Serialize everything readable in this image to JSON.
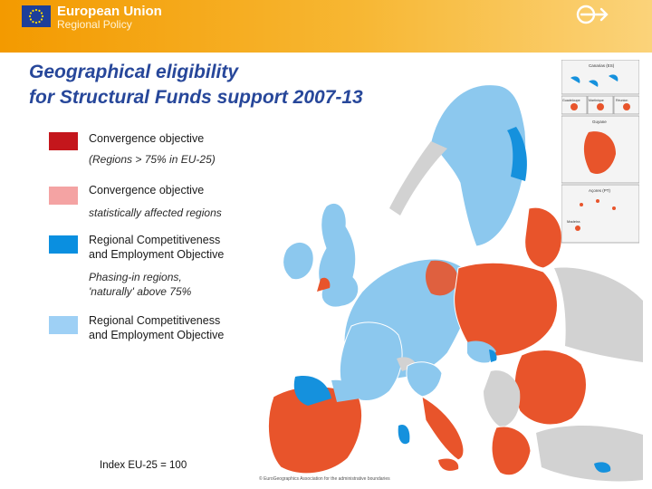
{
  "header": {
    "org_title": "European Union",
    "org_subtitle": "Regional Policy"
  },
  "title": "Geographical  eligibility\nfor Structural Funds support 2007-13",
  "legend": [
    {
      "label": "Convergence objective",
      "note": "(Regions > 75% in EU-25)",
      "color": "#c4161c"
    },
    {
      "label": "Convergence objective",
      "note": "statistically affected regions",
      "color": "#f4a3a3"
    },
    {
      "label": "Regional Competitiveness\nand Employment Objective",
      "note": "Phasing-in regions,\n'naturally' above 75%",
      "color": "#0a8fe0"
    },
    {
      "label": "Regional Competitiveness\nand Employment Objective",
      "note": "",
      "color": "#9ed0f5"
    }
  ],
  "map": {
    "convergence_color": "#e8542b",
    "competitiveness_color": "#8cc8ee",
    "phasing_in_color": "#1591dd",
    "non_eu_color": "#d2d2d2",
    "sea_color": "#ffffff",
    "insets": [
      "Canarias (ES)",
      "Guadeloupe",
      "Martinique",
      "Réunion",
      "Guyane",
      "Açores (PT)",
      "Madeira"
    ],
    "copyright": "© EuroGeographics Association for the administrative boundaries"
  },
  "footer": {
    "index_label": "Index EU-25 = 100"
  }
}
